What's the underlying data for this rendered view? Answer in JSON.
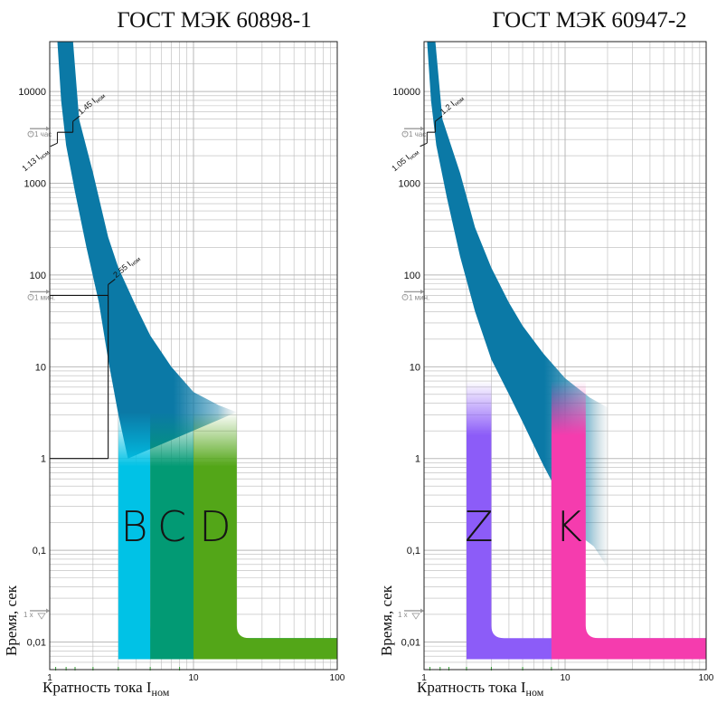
{
  "chart_data": [
    {
      "type": "area",
      "title": "ГОСТ МЭК 60898-1",
      "xlabel": "Кратность тока I",
      "xlabel_sub": "ном",
      "ylabel": "Время, сек",
      "xscale": "log",
      "yscale": "log",
      "xlim": [
        1,
        100
      ],
      "ylim": [
        0.005,
        35000
      ],
      "grid": true,
      "x_ticks": [
        {
          "v": 1,
          "label": "1"
        },
        {
          "v": 10,
          "label": "10"
        },
        {
          "v": 100,
          "label": "100"
        }
      ],
      "y_ticks": [
        {
          "v": 10000,
          "label": "10000"
        },
        {
          "v": 1000,
          "label": "1000"
        },
        {
          "v": 100,
          "label": "100"
        },
        {
          "v": 10,
          "label": "10"
        },
        {
          "v": 1,
          "label": "1"
        },
        {
          "v": 0.1,
          "label": "0,1"
        },
        {
          "v": 0.01,
          "label": "0,01"
        }
      ],
      "time_markers": [
        {
          "v": 3600,
          "label": "1 час"
        },
        {
          "v": 60,
          "label": "1 мин."
        },
        {
          "v": 0.02,
          "label": "1 x"
        }
      ],
      "thermal_band": {
        "color": "#0b79a6",
        "lower": [
          [
            1.13,
            36000
          ],
          [
            1.2,
            8000
          ],
          [
            1.3,
            2600
          ],
          [
            1.5,
            800
          ],
          [
            1.8,
            200
          ],
          [
            2.2,
            50
          ],
          [
            2.55,
            12
          ],
          [
            3,
            3
          ],
          [
            3.5,
            1
          ]
        ],
        "upper": [
          [
            1.45,
            36000
          ],
          [
            1.6,
            5000
          ],
          [
            2,
            1300
          ],
          [
            2.55,
            260
          ],
          [
            3,
            120
          ],
          [
            4,
            45
          ],
          [
            5,
            22
          ],
          [
            7,
            10
          ],
          [
            10,
            5.3
          ],
          [
            15,
            3.8
          ],
          [
            20,
            3.2
          ]
        ]
      },
      "annotations": [
        {
          "x": 1.13,
          "y": 3600,
          "label": "1.13 I",
          "sub": "ном"
        },
        {
          "x": 1.45,
          "y": 3600,
          "label": "1.45 I",
          "sub": "ном"
        },
        {
          "x": 2.55,
          "y": 60,
          "label": "2.55 I",
          "sub": "ном"
        }
      ],
      "reference_lines": [
        {
          "type": "h",
          "y": 3600,
          "from": 1.13,
          "to": 1.45
        },
        {
          "type": "h",
          "y": 60,
          "from": 1,
          "to": 2.55
        },
        {
          "type": "v",
          "x": 2.55,
          "from": 60,
          "to": 1
        },
        {
          "type": "h",
          "y": 1,
          "from": 1,
          "to": 2.55
        }
      ],
      "series": [
        {
          "name": "B",
          "x_min": 3,
          "x_max": 5,
          "color": "#00c2e6"
        },
        {
          "name": "C",
          "x_min": 5,
          "x_max": 10,
          "color": "#029a74"
        },
        {
          "name": "D",
          "x_min": 10,
          "x_max": 20,
          "color": "#53a618"
        }
      ],
      "instant_tail": {
        "y_low": 0.0065,
        "y_high": 0.011,
        "x_end": 100
      }
    },
    {
      "type": "area",
      "title": "ГОСТ МЭК 60947-2",
      "xlabel": "Кратность тока I",
      "xlabel_sub": "ном",
      "ylabel": "Время, сек",
      "xscale": "log",
      "yscale": "log",
      "xlim": [
        1,
        100
      ],
      "ylim": [
        0.005,
        35000
      ],
      "grid": true,
      "x_ticks": [
        {
          "v": 1,
          "label": "1"
        },
        {
          "v": 10,
          "label": "10"
        },
        {
          "v": 100,
          "label": "100"
        }
      ],
      "y_ticks": [
        {
          "v": 10000,
          "label": "10000"
        },
        {
          "v": 1000,
          "label": "1000"
        },
        {
          "v": 100,
          "label": "100"
        },
        {
          "v": 10,
          "label": "10"
        },
        {
          "v": 1,
          "label": "1"
        },
        {
          "v": 0.1,
          "label": "0,1"
        },
        {
          "v": 0.01,
          "label": "0,01"
        }
      ],
      "time_markers": [
        {
          "v": 3600,
          "label": "1 час"
        },
        {
          "v": 60,
          "label": "1 мин."
        },
        {
          "v": 0.02,
          "label": "1 x"
        }
      ],
      "thermal_band": {
        "color": "#0b79a6",
        "lower": [
          [
            1.05,
            36000
          ],
          [
            1.12,
            8000
          ],
          [
            1.22,
            2600
          ],
          [
            1.45,
            700
          ],
          [
            1.8,
            160
          ],
          [
            2.3,
            40
          ],
          [
            3,
            12
          ],
          [
            4,
            5
          ],
          [
            5,
            2.5
          ]
        ],
        "upper": [
          [
            1.2,
            36000
          ],
          [
            1.35,
            5000
          ],
          [
            1.8,
            1300
          ],
          [
            2.3,
            330
          ],
          [
            3,
            120
          ],
          [
            4,
            50
          ],
          [
            5,
            28
          ],
          [
            7,
            14
          ],
          [
            10,
            7.5
          ],
          [
            15,
            4.6
          ],
          [
            20,
            3.6
          ]
        ],
        "lower_ext": [
          [
            5,
            2.5
          ],
          [
            7,
            0.85
          ],
          [
            10,
            0.3
          ],
          [
            13,
            0.14
          ],
          [
            16,
            0.11
          ],
          [
            20,
            0.065
          ]
        ]
      },
      "annotations": [
        {
          "x": 1.05,
          "y": 3600,
          "label": "1.05 I",
          "sub": "ном"
        },
        {
          "x": 1.2,
          "y": 3600,
          "label": "1.2 I",
          "sub": "ном"
        }
      ],
      "reference_lines": [
        {
          "type": "h",
          "y": 3600,
          "from": 1.05,
          "to": 1.2
        }
      ],
      "series": [
        {
          "name": "Z",
          "x_min": 2,
          "x_max": 3,
          "color": "#8c5cf8"
        },
        {
          "name": "K",
          "x_min": 8,
          "x_max": 14,
          "color": "#f53cae"
        }
      ],
      "instant_tail": {
        "y_low": 0.0065,
        "y_high": 0.011,
        "x_end": 100
      }
    }
  ]
}
